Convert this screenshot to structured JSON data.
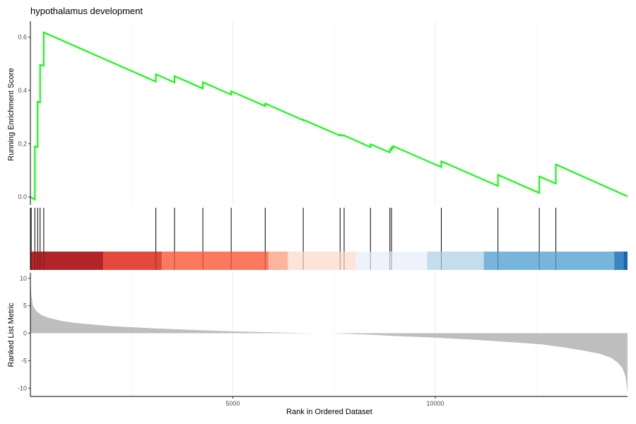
{
  "chart_data": {
    "type": "line",
    "title": "hypothalamus development",
    "xlabel": "Rank in Ordered Dataset",
    "xlim": [
      0,
      14750
    ],
    "x_ticks": [
      5000,
      10000
    ],
    "x_tick_labels": [
      "5000",
      "10000"
    ],
    "grid": "vertical major gridlines only",
    "panels": {
      "running_score": {
        "ylabel": "Running Enrichment Score",
        "ylim": [
          -0.03,
          0.66
        ],
        "y_ticks": [
          0.0,
          0.2,
          0.4,
          0.6
        ],
        "y_tick_labels": [
          "0.0",
          "0.2",
          "0.4",
          "0.6"
        ],
        "line_color": "#00ff00",
        "x": [
          0,
          110,
          110,
          180,
          180,
          240,
          240,
          330,
          330,
          3100,
          3100,
          3560,
          3560,
          4260,
          4260,
          4960,
          4960,
          5800,
          5800,
          6740,
          6740,
          7650,
          7650,
          7700,
          7700,
          7700,
          7750,
          7750,
          8400,
          8400,
          8880,
          8880,
          8920,
          8920,
          8960,
          8960,
          10150,
          10150,
          11550,
          11550,
          12570,
          12570,
          12980,
          12980,
          14750
        ],
        "y": [
          0.0,
          -0.01,
          0.19,
          0.187,
          0.358,
          0.355,
          0.496,
          0.493,
          0.618,
          0.433,
          0.461,
          0.43,
          0.454,
          0.407,
          0.431,
          0.384,
          0.397,
          0.341,
          0.351,
          0.288,
          0.29,
          0.23,
          0.234,
          0.231,
          0.231,
          0.231,
          0.23,
          0.231,
          0.187,
          0.198,
          0.167,
          0.178,
          0.176,
          0.186,
          0.183,
          0.191,
          0.112,
          0.134,
          0.041,
          0.083,
          0.015,
          0.077,
          0.05,
          0.122,
          0.002
        ]
      },
      "hits": {
        "positions": [
          20,
          110,
          180,
          240,
          330,
          3100,
          3560,
          4260,
          4960,
          5800,
          6740,
          7650,
          7750,
          8400,
          8880,
          8920,
          10150,
          11550,
          12570,
          12980
        ]
      },
      "rank_heatmap": {
        "bands": [
          {
            "from": 0,
            "to": 1800,
            "color": "#b2262b"
          },
          {
            "from": 1800,
            "to": 3250,
            "color": "#e34a3d"
          },
          {
            "from": 3250,
            "to": 5880,
            "color": "#fb7a5f"
          },
          {
            "from": 5880,
            "to": 6360,
            "color": "#fcb49c"
          },
          {
            "from": 6360,
            "to": 8040,
            "color": "#fee4d8"
          },
          {
            "from": 8040,
            "to": 9800,
            "color": "#eef3fb"
          },
          {
            "from": 9800,
            "to": 11200,
            "color": "#c4ddec"
          },
          {
            "from": 11200,
            "to": 14420,
            "color": "#78b5da"
          },
          {
            "from": 14420,
            "to": 14650,
            "color": "#3a86c2"
          },
          {
            "from": 14650,
            "to": 14750,
            "color": "#1f65ac"
          }
        ]
      },
      "ranked_metric": {
        "ylabel": "Ranked List Metric",
        "ylim": [
          -11.5,
          11
        ],
        "y_ticks": [
          10,
          5,
          0,
          -5,
          -10
        ],
        "y_tick_labels": [
          "10",
          "5",
          "0",
          "-5",
          "-10"
        ],
        "fill_color": "#bebebe",
        "x": [
          0,
          20,
          60,
          150,
          300,
          500,
          800,
          1200,
          2000,
          3000,
          4000,
          5000,
          6000,
          7000,
          7400,
          7800,
          8500,
          9000,
          10000,
          11000,
          12000,
          12600,
          13200,
          13700,
          14100,
          14350,
          14500,
          14620,
          14700,
          14750
        ],
        "y": [
          9.8,
          7.0,
          5.0,
          4.0,
          3.2,
          2.7,
          2.2,
          1.8,
          1.3,
          0.9,
          0.6,
          0.35,
          0.15,
          0.0,
          0.0,
          -0.1,
          -0.3,
          -0.5,
          -0.8,
          -1.2,
          -1.7,
          -2.0,
          -2.6,
          -3.2,
          -3.8,
          -4.5,
          -5.3,
          -6.3,
          -7.8,
          -10.8
        ]
      }
    }
  }
}
